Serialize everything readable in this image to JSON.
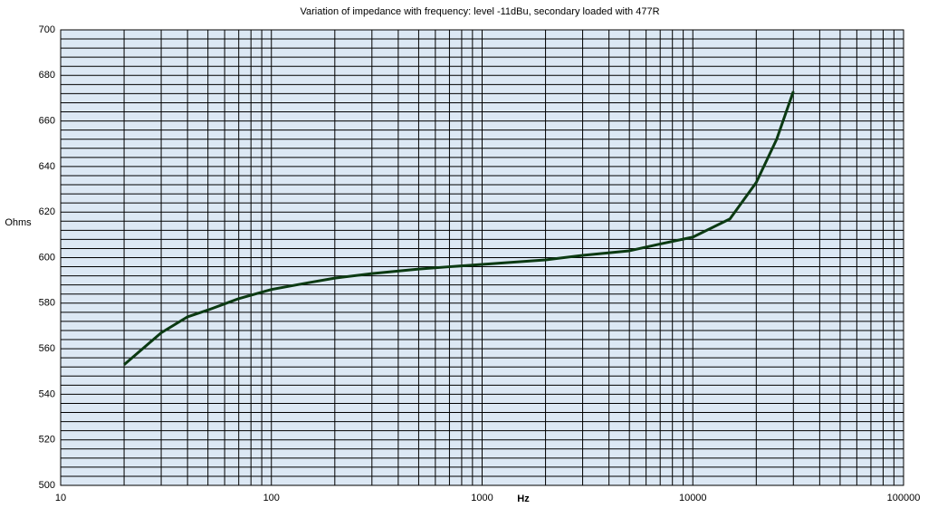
{
  "chart_data": {
    "type": "line",
    "title": "Variation of impedance with frequency: level  -11dBu, secondary loaded with 477R",
    "x_label": "Hz",
    "y_label": "Ohms",
    "x": [
      20,
      30,
      40,
      50,
      70,
      100,
      150,
      200,
      300,
      500,
      700,
      1000,
      2000,
      3000,
      5000,
      7000,
      10000,
      15000,
      20000,
      25000,
      30000
    ],
    "series": [
      {
        "name": "Impedance",
        "color": "#0b3a12",
        "values": [
          553,
          567,
          574,
          577,
          582,
          586,
          589,
          591,
          593,
          595,
          596,
          597,
          599,
          601,
          603,
          606,
          609,
          617,
          633,
          652,
          673
        ]
      }
    ],
    "xlim": [
      10,
      100000
    ],
    "xticks": [
      10,
      100,
      1000,
      10000,
      100000
    ],
    "xscale": "log",
    "ylim": [
      500,
      700
    ],
    "yticks": [
      500,
      520,
      540,
      560,
      580,
      600,
      620,
      640,
      660,
      680,
      700
    ],
    "grid": true,
    "background": "#dce8f4"
  }
}
